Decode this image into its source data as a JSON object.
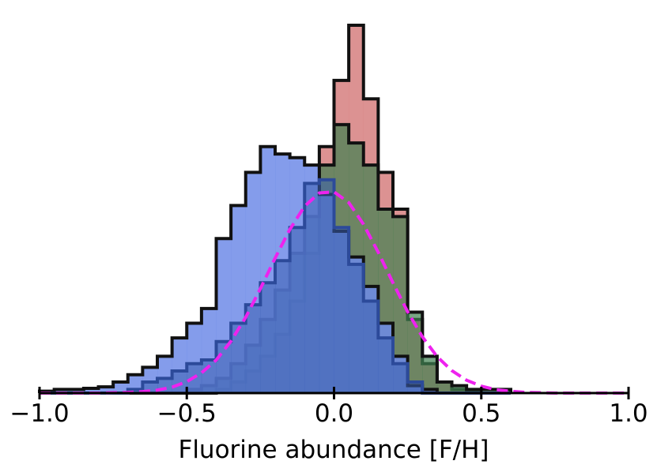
{
  "chart_data": {
    "type": "histogram",
    "xlabel": "Fluorine abundance [F/H]",
    "xlim": [
      -1.0,
      1.0
    ],
    "ylim": [
      0,
      100
    ],
    "xticks": [
      {
        "value": -1.0,
        "label": "−1.0"
      },
      {
        "value": -0.5,
        "label": "−0.5"
      },
      {
        "value": 0.0,
        "label": "0.0"
      },
      {
        "value": 0.5,
        "label": "0.5"
      },
      {
        "value": 1.0,
        "label": "1.0"
      }
    ],
    "bins": [
      -1.0,
      -0.95,
      -0.9,
      -0.85,
      -0.8,
      -0.75,
      -0.7,
      -0.65,
      -0.6,
      -0.55,
      -0.5,
      -0.45,
      -0.4,
      -0.35,
      -0.3,
      -0.25,
      -0.2,
      -0.15,
      -0.1,
      -0.05,
      0.0,
      0.05,
      0.1,
      0.15,
      0.2,
      0.25,
      0.3,
      0.35,
      0.4,
      0.45,
      0.5,
      0.55,
      0.6
    ],
    "series": [
      {
        "type": "histogram",
        "color": "#d67f7f",
        "edgecolor": "#111111",
        "opacity": 0.85,
        "values": [
          0,
          0,
          0,
          0,
          0,
          0,
          0,
          0,
          0,
          0,
          0,
          0,
          1,
          3,
          6,
          10,
          16,
          25,
          38,
          67,
          85,
          100,
          80,
          60,
          50,
          20,
          8,
          3,
          1,
          0.5,
          0,
          0
        ]
      },
      {
        "type": "histogram",
        "color": "#3f8050",
        "edgecolor": "#111111",
        "opacity": 0.7,
        "values": [
          0,
          0,
          0,
          0,
          0,
          0,
          0,
          0,
          0,
          0,
          1,
          2,
          4,
          8,
          13,
          20,
          28,
          38,
          48,
          62,
          73,
          68,
          62,
          50,
          48,
          22,
          10,
          3,
          2,
          1,
          1,
          1
        ]
      },
      {
        "type": "histogram",
        "color": "#6f8be8",
        "edgecolor": "#111111",
        "opacity": 0.85,
        "values": [
          0.5,
          1,
          1,
          1.3,
          1.7,
          3,
          5,
          7,
          10,
          15,
          19,
          23,
          42,
          51,
          60,
          67,
          65,
          64,
          62,
          54,
          44,
          37,
          29,
          19,
          10,
          2,
          1,
          0,
          0,
          0,
          0,
          0
        ]
      },
      {
        "type": "histogram",
        "color": "#3a5fb0",
        "edgecolor": "#2c4a9a",
        "opacity": 0.55,
        "values": [
          0,
          0,
          0,
          0,
          0,
          0,
          1,
          3,
          4,
          6,
          8,
          9,
          14,
          19,
          24,
          30,
          36,
          45,
          57,
          58,
          45,
          35,
          25,
          15,
          8,
          3,
          0,
          0,
          0,
          0,
          0,
          0
        ]
      },
      {
        "type": "line",
        "color": "#ee22ee",
        "dashed": true,
        "x": [
          -1.0,
          -0.95,
          -0.9,
          -0.85,
          -0.8,
          -0.75,
          -0.7,
          -0.65,
          -0.6,
          -0.55,
          -0.5,
          -0.45,
          -0.4,
          -0.35,
          -0.3,
          -0.25,
          -0.2,
          -0.15,
          -0.1,
          -0.05,
          0.0,
          0.05,
          0.1,
          0.15,
          0.2,
          0.25,
          0.3,
          0.35,
          0.4,
          0.45,
          0.5,
          0.55,
          0.6,
          0.65,
          0.7,
          0.75,
          0.8,
          0.85,
          0.9,
          0.95,
          1.0
        ],
        "values": [
          0,
          0,
          0,
          0,
          0,
          0.1,
          0.2,
          0.4,
          0.8,
          1.6,
          3.1,
          5.5,
          9.0,
          14.1,
          20.6,
          28.4,
          36.7,
          44.5,
          50.8,
          54.4,
          54.7,
          51.8,
          45.9,
          38.3,
          30.0,
          22.1,
          15.3,
          9.9,
          6.1,
          3.5,
          1.9,
          0.9,
          0.5,
          0.2,
          0.1,
          0,
          0,
          0,
          0,
          0,
          0
        ]
      }
    ]
  }
}
